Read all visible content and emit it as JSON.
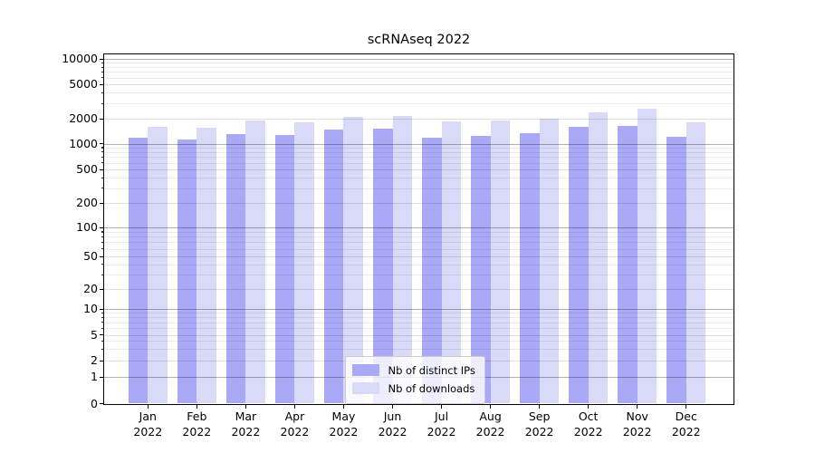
{
  "title": "scRNAseq 2022",
  "chart_data": {
    "type": "bar",
    "title": "scRNAseq 2022",
    "categories": [
      "Jan 2022",
      "Feb 2022",
      "Mar 2022",
      "Apr 2022",
      "May 2022",
      "Jun 2022",
      "Jul 2022",
      "Aug 2022",
      "Sep 2022",
      "Oct 2022",
      "Nov 2022",
      "Dec 2022"
    ],
    "series": [
      {
        "name": "Nb of distinct IPs",
        "color": "#a9a9f7",
        "values": [
          1170,
          1110,
          1300,
          1270,
          1460,
          1530,
          1180,
          1240,
          1340,
          1590,
          1650,
          1210
        ]
      },
      {
        "name": "Nb of downloads",
        "color": "#d9d9f8",
        "values": [
          1590,
          1550,
          1920,
          1820,
          2120,
          2150,
          1860,
          1920,
          1990,
          2390,
          2590,
          1810
        ]
      }
    ],
    "xlabel": "",
    "ylabel": "",
    "yscale": "symlog",
    "yticks": [
      0,
      1,
      2,
      5,
      10,
      20,
      50,
      100,
      200,
      500,
      1000,
      2000,
      5000,
      10000
    ],
    "ylim": [
      0,
      11500
    ],
    "grid": true,
    "legend_position": "lower center"
  },
  "colors": {
    "grid_major": "#b3b3b3",
    "grid_mid": "#dedede",
    "grid_minor": "#ececec",
    "axis": "#000000"
  }
}
